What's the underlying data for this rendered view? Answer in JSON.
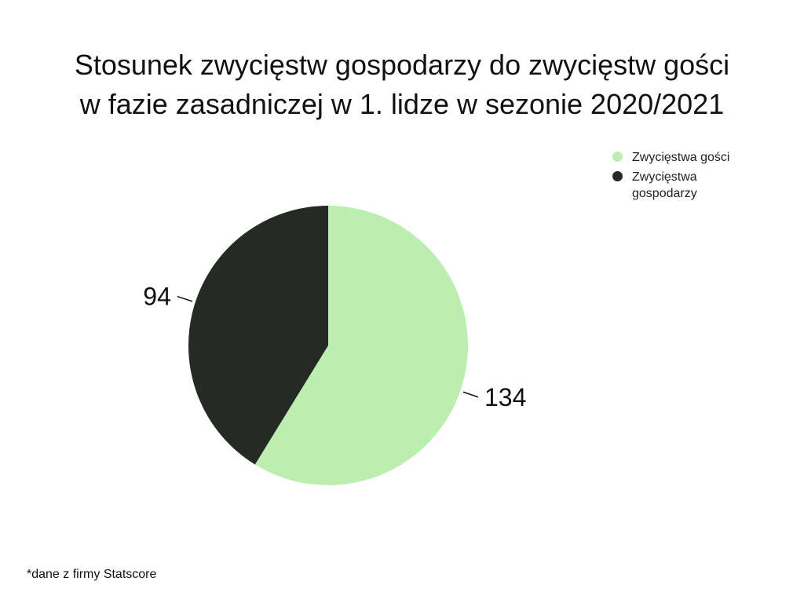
{
  "chart_data": {
    "type": "pie",
    "title_lines": [
      "Stosunek zwycięstw gospodarzy do zwycięstw gości",
      "w fazie zasadniczej w 1. lidze w sezonie 2020/2021"
    ],
    "slices": [
      {
        "name": "Zwycięstwa gości",
        "value": 134,
        "color": "#bdeeb1"
      },
      {
        "name": "Zwycięstwa gospodarzy",
        "value": 94,
        "color": "#262a24"
      }
    ],
    "legend_position": "top-right",
    "start": "top",
    "direction": "clockwise"
  },
  "legend": {
    "items": [
      {
        "label": "Zwycięstwa gości",
        "color": "#bdeeb1"
      },
      {
        "label": "Zwycięstwa gospodarzy",
        "color": "#262a24"
      }
    ]
  },
  "footnote": "*dane z firmy Statscore"
}
